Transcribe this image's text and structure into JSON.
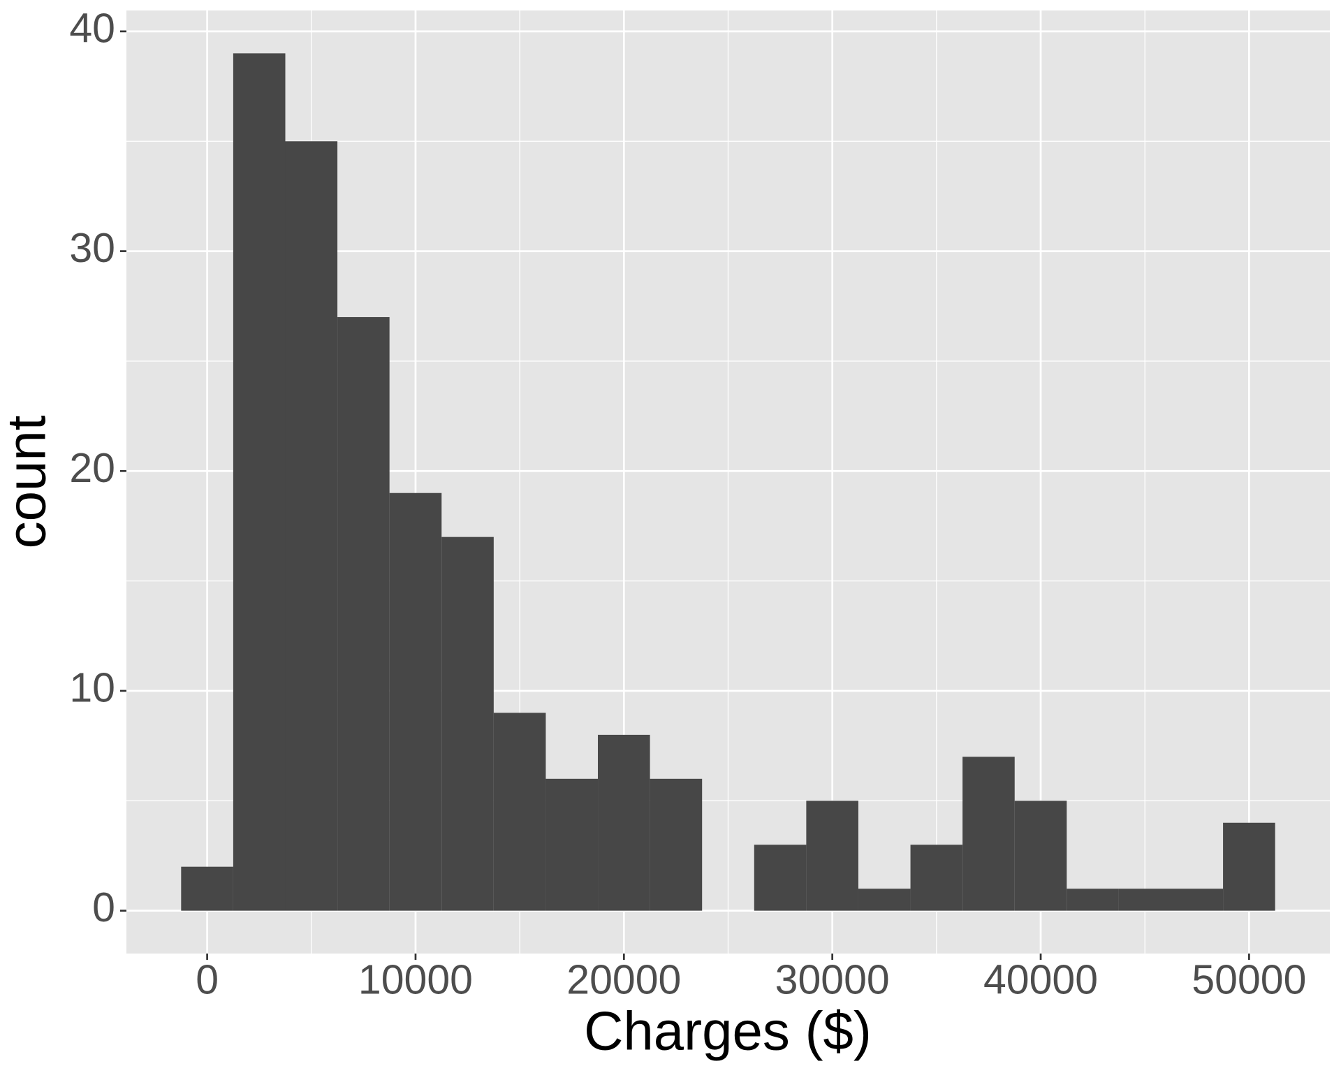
{
  "chart_data": {
    "type": "histogram",
    "x_label": "Charges ($)",
    "y_label": "count",
    "bins": [
      -1250,
      1250,
      3750,
      6250,
      8750,
      11250,
      13750,
      16250,
      18750,
      21250,
      23750,
      26250,
      28750,
      31250,
      33750,
      36250,
      38750,
      41250,
      43750,
      46250,
      48750,
      51250
    ],
    "values": [
      2,
      39,
      35,
      27,
      19,
      17,
      9,
      6,
      8,
      6,
      0,
      3,
      5,
      1,
      3,
      7,
      5,
      1,
      1,
      1,
      4
    ],
    "color": "#474747",
    "xlim": [
      -3875,
      53875
    ],
    "ylim": [
      -1.95,
      40.95
    ],
    "xticks": [
      0,
      10000,
      20000,
      30000,
      40000,
      50000
    ],
    "yticks": [
      0,
      10,
      20,
      30,
      40
    ],
    "grid": true
  }
}
